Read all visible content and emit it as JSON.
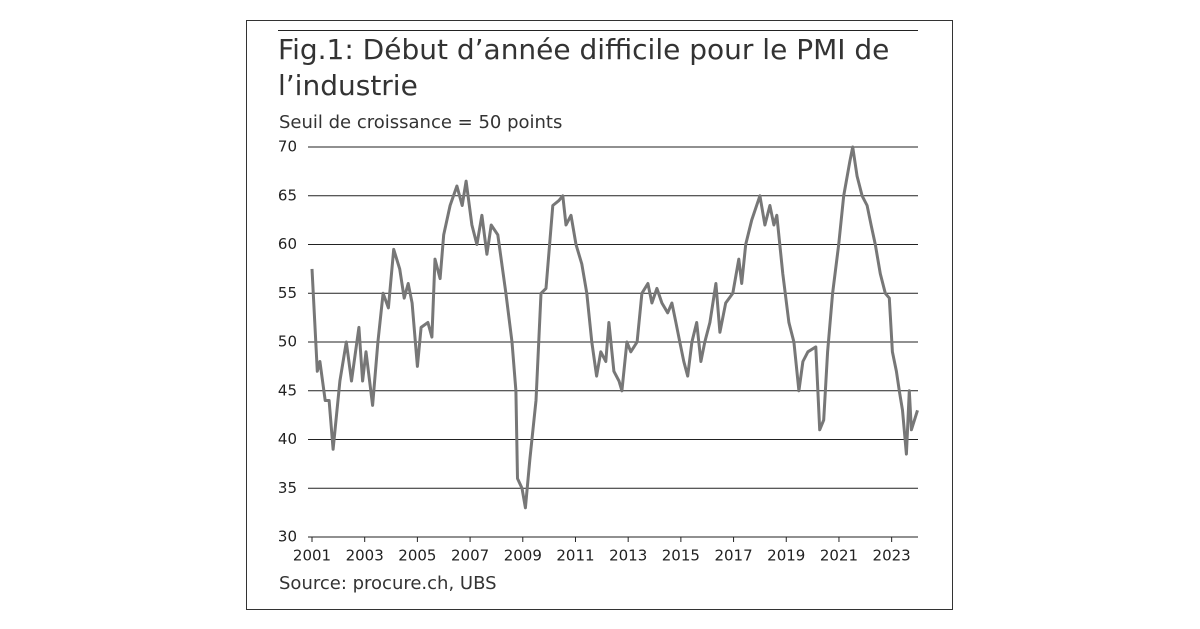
{
  "chart_data": {
    "type": "line",
    "title": "Fig.1: Début d’année difficile pour le PMI de l’industrie",
    "subtitle": "Seuil de croissance = 50 points",
    "source": "Source: procure.ch, UBS",
    "xlim": [
      2001,
      2024
    ],
    "xticks": [
      2001,
      2003,
      2005,
      2007,
      2009,
      2011,
      2013,
      2015,
      2017,
      2019,
      2021,
      2023
    ],
    "ylim": [
      30,
      70
    ],
    "yticks": [
      30,
      35,
      40,
      45,
      50,
      55,
      60,
      65,
      70
    ],
    "grid": true,
    "series": [
      {
        "name": "PMI",
        "color": "#777777",
        "x": [
          2001.0,
          2001.2,
          2001.3,
          2001.5,
          2001.65,
          2001.8,
          2002.06,
          2002.3,
          2002.5,
          2002.78,
          2002.92,
          2003.05,
          2003.3,
          2003.5,
          2003.7,
          2003.9,
          2004.1,
          2004.33,
          2004.5,
          2004.65,
          2004.8,
          2005.0,
          2005.14,
          2005.4,
          2005.55,
          2005.67,
          2005.86,
          2006.0,
          2006.24,
          2006.5,
          2006.7,
          2006.85,
          2007.07,
          2007.26,
          2007.45,
          2007.64,
          2007.8,
          2008.05,
          2008.36,
          2008.59,
          2008.74,
          2008.8,
          2008.97,
          2009.1,
          2009.27,
          2009.5,
          2009.69,
          2009.88,
          2010.14,
          2010.37,
          2010.52,
          2010.64,
          2010.83,
          2011.02,
          2011.24,
          2011.43,
          2011.62,
          2011.8,
          2011.96,
          2012.15,
          2012.27,
          2012.46,
          2012.65,
          2012.76,
          2012.95,
          2013.1,
          2013.34,
          2013.52,
          2013.75,
          2013.9,
          2014.09,
          2014.28,
          2014.5,
          2014.66,
          2014.81,
          2014.96,
          2015.11,
          2015.26,
          2015.42,
          2015.6,
          2015.76,
          2015.91,
          2016.1,
          2016.33,
          2016.48,
          2016.7,
          2016.97,
          2017.2,
          2017.31,
          2017.46,
          2017.69,
          2018.0,
          2018.19,
          2018.38,
          2018.53,
          2018.64,
          2018.87,
          2019.1,
          2019.29,
          2019.48,
          2019.63,
          2019.82,
          2020.12,
          2020.27,
          2020.42,
          2020.57,
          2020.76,
          2020.99,
          2021.18,
          2021.41,
          2021.52,
          2021.69,
          2021.88,
          2022.07,
          2022.22,
          2022.38,
          2022.57,
          2022.76,
          2022.91,
          2023.03,
          2023.18,
          2023.29,
          2023.41,
          2023.56,
          2023.67,
          2023.75,
          2023.98
        ],
        "values": [
          57.5,
          47,
          48,
          44,
          44,
          39,
          46,
          50,
          46,
          51.5,
          46,
          49,
          43.5,
          50,
          55,
          53.5,
          59.5,
          57.5,
          54.5,
          56,
          54,
          47.5,
          51.5,
          52,
          50.5,
          58.5,
          56.5,
          61,
          64,
          66,
          64,
          66.5,
          62,
          60,
          63,
          59,
          62,
          61,
          55,
          50,
          45,
          36,
          35,
          33,
          38,
          44,
          55,
          55.5,
          64,
          64.5,
          65,
          62,
          63,
          60,
          58,
          55,
          50,
          46.5,
          49,
          48,
          52,
          47,
          46,
          45,
          50,
          49,
          50,
          55,
          56,
          54,
          55.5,
          54,
          53,
          54,
          52,
          50,
          48,
          46.5,
          50,
          52,
          48,
          50,
          52,
          56,
          51,
          54,
          55,
          58.5,
          56,
          60,
          62.5,
          65,
          62,
          64,
          62,
          63,
          57,
          52,
          50,
          45,
          48,
          49,
          49.5,
          41,
          42,
          49,
          55,
          60,
          65,
          68.5,
          70,
          67,
          65,
          64,
          62,
          60,
          57,
          55,
          54.5,
          49,
          47,
          45,
          43,
          38.5,
          45,
          41,
          43
        ]
      }
    ]
  }
}
